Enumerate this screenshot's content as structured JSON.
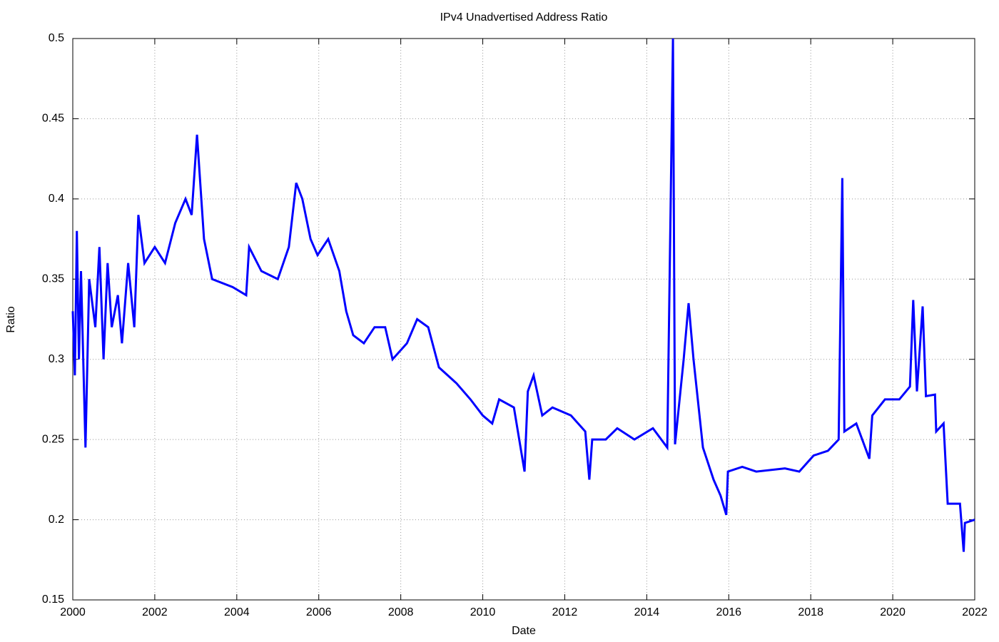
{
  "chart_data": {
    "type": "line",
    "title": "IPv4 Unadvertised Address Ratio",
    "xlabel": "Date",
    "ylabel": "Ratio",
    "x": [
      2000.0,
      2000.05,
      2000.1,
      2000.15,
      2000.2,
      2000.31,
      2000.4,
      2000.55,
      2000.65,
      2000.75,
      2000.85,
      2000.95,
      2001.1,
      2001.2,
      2001.35,
      2001.5,
      2001.6,
      2001.75,
      2002.0,
      2002.25,
      2002.5,
      2002.75,
      2002.9,
      2003.03,
      2003.2,
      2003.4,
      2003.9,
      2004.23,
      2004.3,
      2004.6,
      2005.0,
      2005.27,
      2005.45,
      2005.6,
      2005.8,
      2005.97,
      2006.23,
      2006.5,
      2006.67,
      2006.84,
      2007.1,
      2007.36,
      2007.62,
      2007.8,
      2008.15,
      2008.4,
      2008.67,
      2008.93,
      2009.36,
      2009.7,
      2010.0,
      2010.23,
      2010.4,
      2010.76,
      2011.02,
      2011.1,
      2011.24,
      2011.45,
      2011.7,
      2012.15,
      2012.5,
      2012.6,
      2012.67,
      2013.0,
      2013.28,
      2013.7,
      2014.15,
      2014.5,
      2014.64,
      2014.69,
      2014.9,
      2015.02,
      2015.14,
      2015.37,
      2015.63,
      2015.8,
      2015.94,
      2015.98,
      2016.33,
      2016.67,
      2017.37,
      2017.72,
      2018.07,
      2018.42,
      2018.68,
      2018.77,
      2018.82,
      2019.11,
      2019.43,
      2019.5,
      2019.81,
      2020.16,
      2020.42,
      2020.5,
      2020.59,
      2020.73,
      2020.81,
      2021.03,
      2021.06,
      2021.24,
      2021.34,
      2021.64,
      2021.73,
      2021.76,
      2022.0
    ],
    "series": [
      {
        "name": "Ratio",
        "color": "#0000ff",
        "values": [
          0.33,
          0.29,
          0.38,
          0.3,
          0.355,
          0.245,
          0.35,
          0.32,
          0.37,
          0.3,
          0.36,
          0.32,
          0.34,
          0.31,
          0.36,
          0.32,
          0.39,
          0.36,
          0.37,
          0.36,
          0.385,
          0.4,
          0.39,
          0.44,
          0.375,
          0.35,
          0.345,
          0.34,
          0.37,
          0.355,
          0.35,
          0.37,
          0.41,
          0.4,
          0.375,
          0.365,
          0.375,
          0.355,
          0.33,
          0.315,
          0.31,
          0.32,
          0.32,
          0.3,
          0.31,
          0.325,
          0.32,
          0.295,
          0.285,
          0.275,
          0.265,
          0.26,
          0.275,
          0.27,
          0.23,
          0.28,
          0.29,
          0.265,
          0.27,
          0.265,
          0.255,
          0.225,
          0.25,
          0.25,
          0.257,
          0.25,
          0.257,
          0.245,
          0.5,
          0.247,
          0.3,
          0.335,
          0.3,
          0.245,
          0.225,
          0.215,
          0.203,
          0.23,
          0.233,
          0.23,
          0.232,
          0.23,
          0.24,
          0.243,
          0.25,
          0.413,
          0.255,
          0.26,
          0.238,
          0.265,
          0.275,
          0.275,
          0.283,
          0.337,
          0.28,
          0.333,
          0.277,
          0.278,
          0.255,
          0.26,
          0.21,
          0.21,
          0.18,
          0.198,
          0.2
        ]
      }
    ],
    "xlim": [
      2000,
      2022
    ],
    "xticks": [
      2000,
      2002,
      2004,
      2006,
      2008,
      2010,
      2012,
      2014,
      2016,
      2018,
      2020,
      2022
    ],
    "ylim": [
      0.15,
      0.5
    ],
    "yticks": [
      0.15,
      0.2,
      0.25,
      0.3,
      0.35,
      0.4,
      0.45,
      0.5
    ],
    "grid": true
  }
}
